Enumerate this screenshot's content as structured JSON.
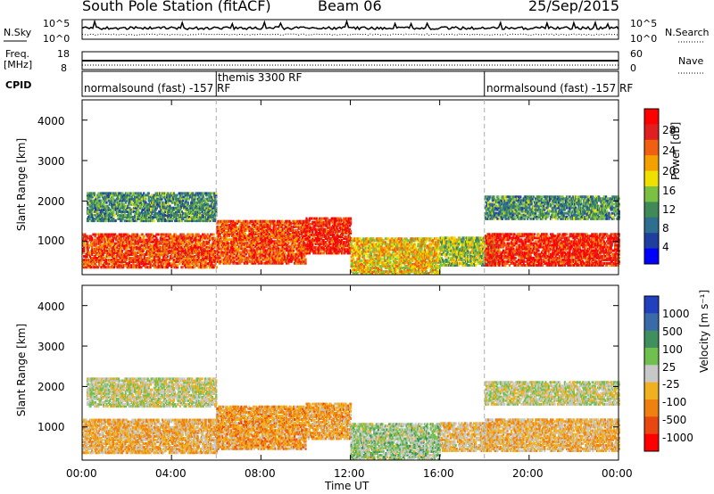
{
  "header": {
    "station": "South Pole Station (fitACF)",
    "beam": "Beam 06",
    "date": "25/Sep/2015"
  },
  "top_panels": {
    "nsky_label": "N.Sky",
    "nsearch_label": "N.Search",
    "counts_scale_top": "10^5",
    "counts_scale_bottom": "10^0",
    "freq_label": "Freq.",
    "freq_unit": "[MHz]",
    "freq_ticks": [
      "18",
      "8"
    ],
    "nave_label": "Nave",
    "nave_ticks": [
      "60",
      "0"
    ],
    "cpid_label": "CPID",
    "cpid_segments": [
      {
        "start_h": 0,
        "end_h": 6,
        "text": "normalsound (fast) -157 RF"
      },
      {
        "start_h": 6,
        "end_h": 18,
        "text": "themis 3300 RF"
      },
      {
        "start_h": 18,
        "end_h": 24,
        "text": "normalsound (fast) -157 RF"
      }
    ]
  },
  "colors": {
    "power": [
      "#0000ff",
      "#1f3fa0",
      "#2e6e8e",
      "#3f8a57",
      "#7ac143",
      "#f0e000",
      "#f4a000",
      "#f06010",
      "#e02020",
      "#ff0000"
    ],
    "velocity": [
      "#2040c0",
      "#3a6aa8",
      "#3f8f5f",
      "#70c050",
      "#c8c8c8",
      "#f0b020",
      "#f08010",
      "#e84810",
      "#ff0000"
    ]
  },
  "chart_data": [
    {
      "type": "heatmap",
      "name": "power",
      "xlabel": "",
      "ylabel": "Slant Range [km]",
      "xlim": [
        0,
        24
      ],
      "ylim": [
        180,
        4500
      ],
      "yticks": [
        "1000",
        "2000",
        "3000",
        "4000"
      ],
      "xticks": [],
      "colorbar": {
        "label": "Power [dB]",
        "ticks": [
          "4",
          "8",
          "12",
          "16",
          "20",
          "24",
          "28"
        ],
        "range": [
          0,
          30
        ]
      },
      "echo_bands": [
        {
          "from_h": 0.0,
          "to_h": 6.0,
          "range_km": [
            350,
            1200
          ],
          "value": 24
        },
        {
          "from_h": 0.2,
          "to_h": 6.0,
          "range_km": [
            1500,
            2200
          ],
          "value": 10
        },
        {
          "from_h": 6.0,
          "to_h": 10.0,
          "range_km": [
            450,
            1500
          ],
          "value": 24
        },
        {
          "from_h": 10.0,
          "to_h": 12.0,
          "range_km": [
            700,
            1600
          ],
          "value": 26
        },
        {
          "from_h": 12.0,
          "to_h": 16.0,
          "range_km": [
            200,
            1100
          ],
          "value": 18
        },
        {
          "from_h": 16.0,
          "to_h": 18.5,
          "range_km": [
            400,
            1100
          ],
          "value": 14
        },
        {
          "from_h": 18.0,
          "to_h": 24.0,
          "range_km": [
            400,
            1200
          ],
          "value": 26
        },
        {
          "from_h": 18.0,
          "to_h": 24.0,
          "range_km": [
            1550,
            2100
          ],
          "value": 10
        }
      ]
    },
    {
      "type": "heatmap",
      "name": "velocity",
      "xlabel": "Time UT",
      "ylabel": "Slant Range [km]",
      "xlim": [
        0,
        24
      ],
      "ylim": [
        180,
        4500
      ],
      "yticks": [
        "1000",
        "2000",
        "3000",
        "4000"
      ],
      "xticks": [
        "00:00",
        "04:00",
        "08:00",
        "12:00",
        "16:00",
        "20:00",
        "00:00"
      ],
      "colorbar": {
        "label": "Velocity [m s⁻¹]",
        "ticks": [
          "1000",
          "500",
          "100",
          "25",
          "-25",
          "-100",
          "-500",
          "-1000"
        ],
        "range": [
          -1200,
          1200
        ]
      },
      "echo_bands": [
        {
          "from_h": 0.0,
          "to_h": 6.0,
          "range_km": [
            350,
            1200
          ],
          "value": -300
        },
        {
          "from_h": 0.2,
          "to_h": 6.0,
          "range_km": [
            1500,
            2200
          ],
          "value": 0
        },
        {
          "from_h": 6.0,
          "to_h": 10.0,
          "range_km": [
            450,
            1500
          ],
          "value": -400
        },
        {
          "from_h": 10.0,
          "to_h": 12.0,
          "range_km": [
            700,
            1600
          ],
          "value": -350
        },
        {
          "from_h": 12.0,
          "to_h": 16.0,
          "range_km": [
            200,
            1100
          ],
          "value": 150
        },
        {
          "from_h": 16.0,
          "to_h": 18.5,
          "range_km": [
            400,
            1100
          ],
          "value": -200
        },
        {
          "from_h": 18.0,
          "to_h": 24.0,
          "range_km": [
            400,
            1200
          ],
          "value": -250
        },
        {
          "from_h": 18.0,
          "to_h": 24.0,
          "range_km": [
            1550,
            2100
          ],
          "value": 0
        }
      ]
    }
  ]
}
